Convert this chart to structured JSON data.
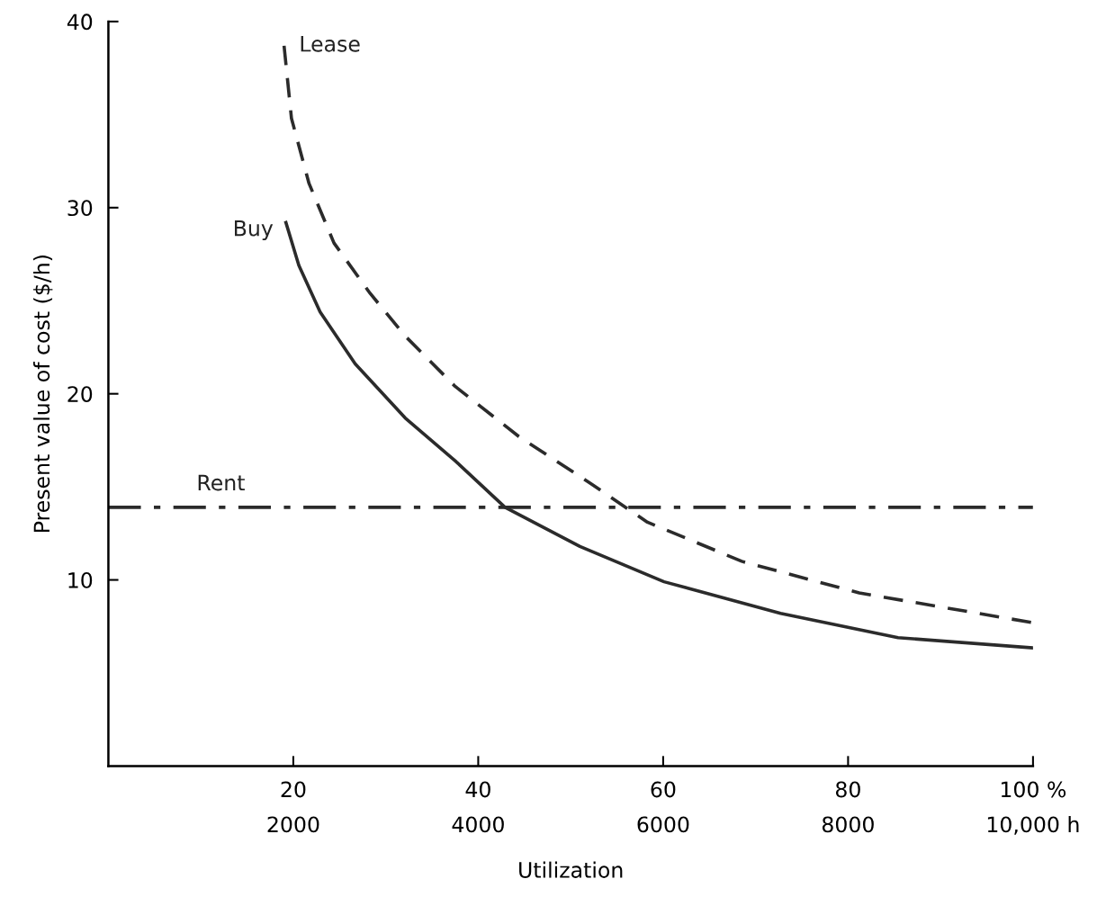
{
  "chart_data": {
    "type": "line",
    "xlabel": "Utilization",
    "ylabel": "Present value of cost ($/h)",
    "xlim": [
      0,
      100
    ],
    "ylim": [
      0,
      40
    ],
    "xticks": [
      20,
      40,
      60,
      80,
      {
        "value": 100,
        "label": "100 %"
      }
    ],
    "x2lim": [
      0,
      10000
    ],
    "x2ticks": [
      2000,
      4000,
      6000,
      8000,
      {
        "value": 10000,
        "label": "10,000 h"
      }
    ],
    "yticks": [
      10,
      20,
      30,
      40
    ],
    "grid": false,
    "legend": false,
    "series": [
      {
        "name": "Lease",
        "color": "#2b2b2b",
        "line_style": "dashed",
        "x": [
          19,
          19.8,
          21.7,
          24.4,
          28.3,
          32.1,
          37.5,
          44.4,
          52.1,
          58.3,
          68.5,
          81.2,
          100
        ],
        "values": [
          38.7,
          34.8,
          31.3,
          28.1,
          25.4,
          23.1,
          20.4,
          17.7,
          15.2,
          13.1,
          11.0,
          9.3,
          7.7
        ]
      },
      {
        "name": "Buy",
        "color": "#2b2b2b",
        "line_style": "solid",
        "x": [
          19.2,
          20.6,
          22.9,
          26.7,
          32.1,
          37.5,
          42.9,
          51,
          60.1,
          72.7,
          85.4,
          100
        ],
        "values": [
          29.2,
          26.9,
          24.4,
          21.6,
          18.7,
          16.4,
          13.9,
          11.8,
          9.9,
          8.2,
          6.9,
          6.35
        ]
      },
      {
        "name": "Rent",
        "color": "#2b2b2b",
        "line_style": "dashdot",
        "x": [
          0,
          100
        ],
        "values": [
          13.9,
          13.9
        ]
      }
    ]
  }
}
